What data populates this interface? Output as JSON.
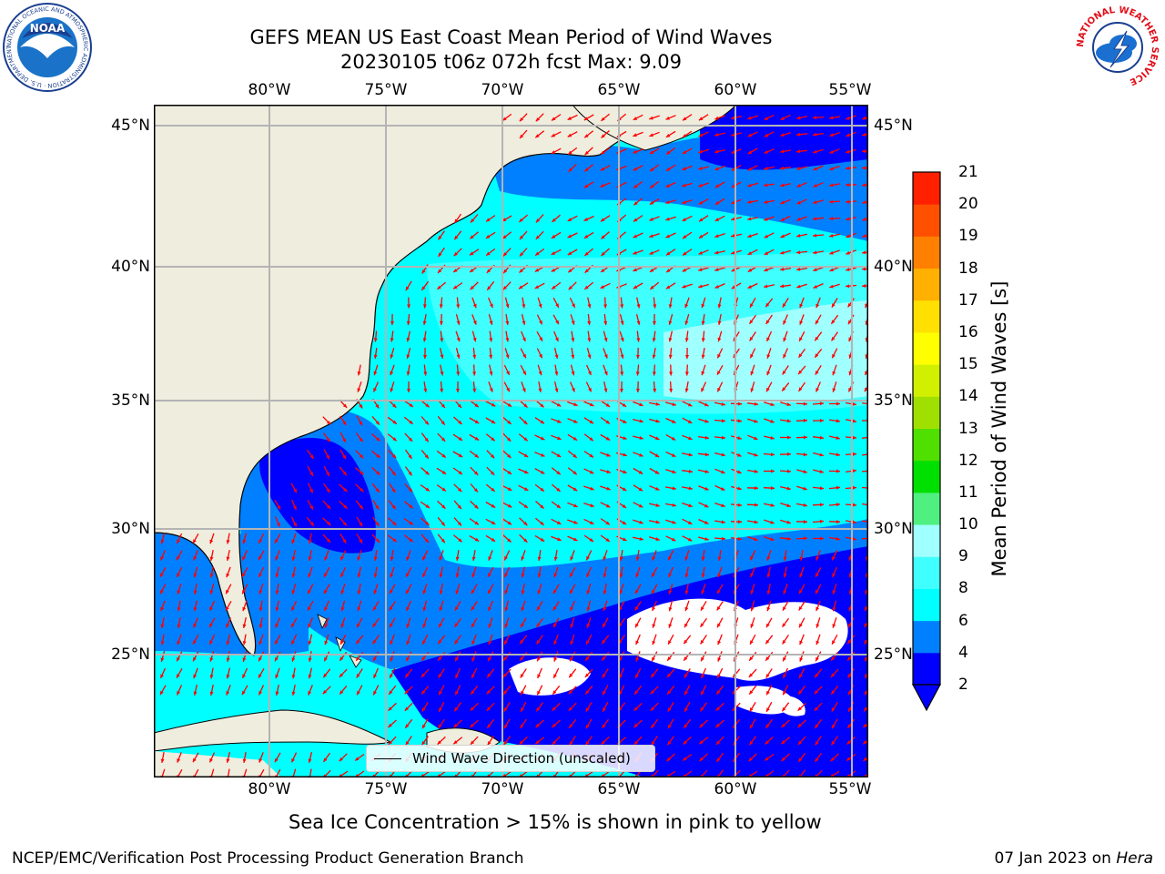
{
  "header": {
    "title_line1": "GEFS MEAN US East Coast Mean Period of Wind Waves",
    "title_line2": "20230105 t06z 072h fcst   Max: 9.09"
  },
  "map": {
    "lon_ticks": [
      "80°W",
      "75°W",
      "70°W",
      "65°W",
      "60°W",
      "55°W"
    ],
    "lat_ticks": [
      "45°N",
      "40°N",
      "35°N",
      "30°N",
      "25°N"
    ],
    "legend_label": "Wind Wave Direction (unscaled)",
    "land_color": "#efedde",
    "arrow_color": "#ff0000",
    "grid_color": "#b4b4b4"
  },
  "colorbar": {
    "label": "Mean Period of Wind Waves [s]",
    "ticks": [
      "2",
      "4",
      "6",
      "8",
      "9",
      "10",
      "11",
      "12",
      "13",
      "14",
      "15",
      "16",
      "17",
      "18",
      "19",
      "20",
      "21"
    ],
    "colors": [
      "#0000ff",
      "#0080ff",
      "#00ffff",
      "#40ffff",
      "#a0ffff",
      "#50f080",
      "#00e000",
      "#50e000",
      "#a0e000",
      "#d0f000",
      "#ffff00",
      "#ffe000",
      "#ffb000",
      "#ff8000",
      "#ff5000",
      "#ff2000",
      "#ff0000"
    ]
  },
  "captions": {
    "sea_ice": "Sea Ice Concentration > 15% is shown in pink to yellow"
  },
  "footer": {
    "left": "NCEP/EMC/Verification Post Processing Product Generation Branch",
    "date": "07 Jan 2023 on ",
    "machine": "Hera"
  },
  "logos": {
    "noaa_text": "NOAA",
    "noaa_ring": "NATIONAL OCEANIC AND ATMOSPHERIC ADMINISTRATION · U.S. DEPARTMENT OF COMMERCE",
    "nws_ring": "NATIONAL WEATHER SERVICE"
  }
}
